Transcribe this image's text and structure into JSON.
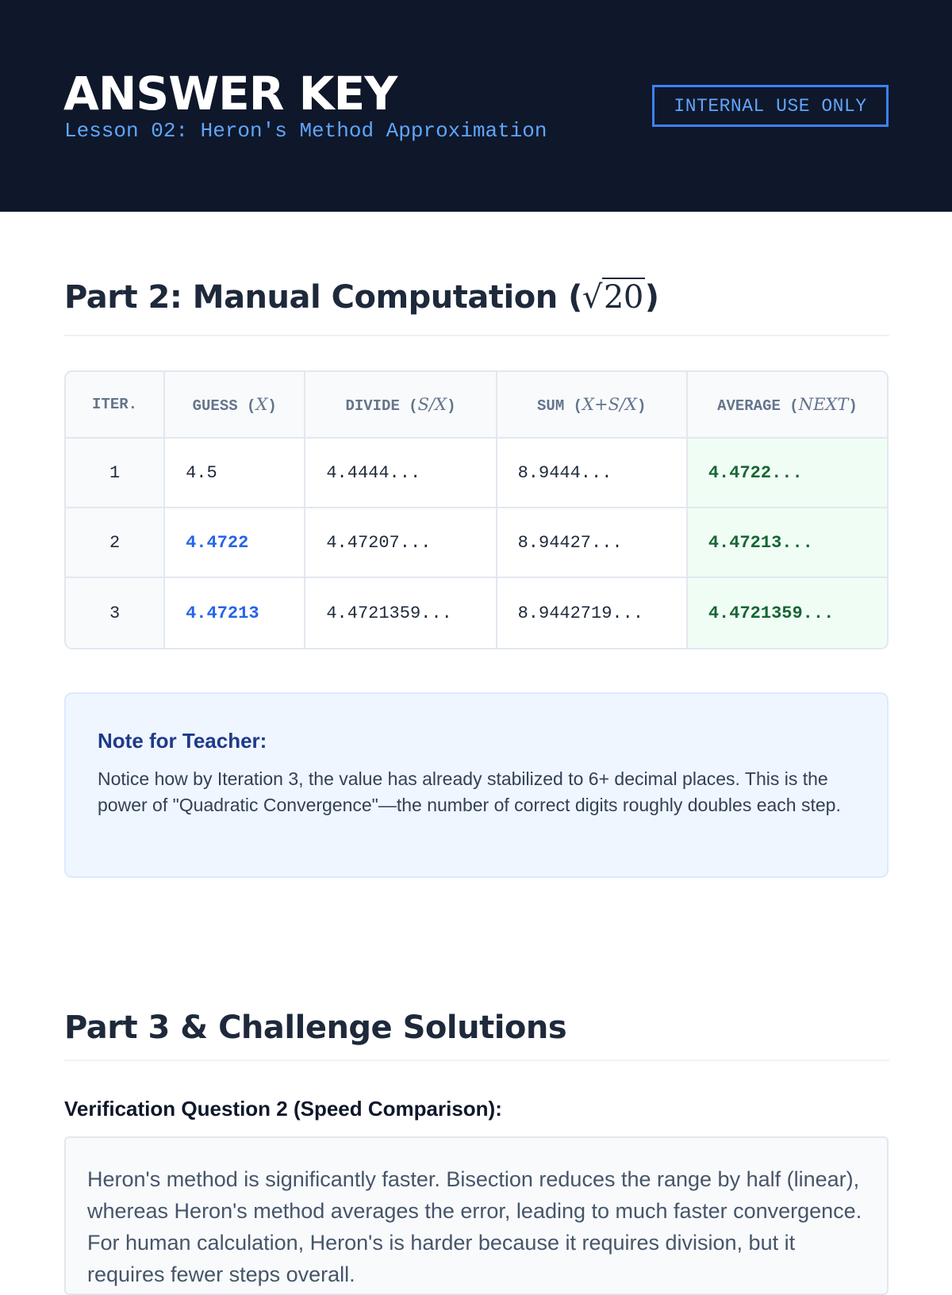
{
  "header": {
    "title": "ANSWER KEY",
    "subtitle": "Lesson 02: Heron's Method Approximation",
    "badge": "INTERNAL USE ONLY"
  },
  "part2": {
    "heading": "Part 2: Manual Computation (",
    "heading_radicand": "20",
    "heading_close": ")",
    "table": {
      "headers": [
        {
          "label": "ITER.",
          "math": ""
        },
        {
          "label": "GUESS (",
          "math": "X",
          "close": ")"
        },
        {
          "label": "DIVIDE (",
          "math": "S/X",
          "close": ")"
        },
        {
          "label": "SUM (",
          "math": "X+S/X",
          "close": ")"
        },
        {
          "label": "AVERAGE (",
          "math": "NEXT",
          "close": ")"
        }
      ],
      "rows": [
        [
          "1",
          "4.5",
          "4.4444...",
          "8.9444...",
          "4.4722..."
        ],
        [
          "2",
          "4.4722",
          "4.47207...",
          "8.94427...",
          "4.47213..."
        ],
        [
          "3",
          "4.47213",
          "4.4721359...",
          "8.9442719...",
          "4.4721359..."
        ]
      ]
    },
    "note": {
      "title": "Note for Teacher:",
      "text": "Notice how by Iteration 3, the value has already stabilized to 6+ decimal places. This is the power of \"Quadratic Convergence\"—the number of correct digits roughly doubles each step."
    }
  },
  "part3": {
    "heading": "Part 3 & Challenge Solutions",
    "question": "Verification Question 2 (Speed Comparison):",
    "answer": "Heron's method is significantly faster. Bisection reduces the range by half (linear), whereas Heron's method averages the error, leading to much faster convergence. For human calculation, Heron's is harder because it requires division, but it requires fewer steps overall."
  },
  "colors": {
    "header_bg": "#0f172a",
    "accent": "#3b82f6",
    "guess_highlight": "#2563eb",
    "average_green": "#166534"
  }
}
